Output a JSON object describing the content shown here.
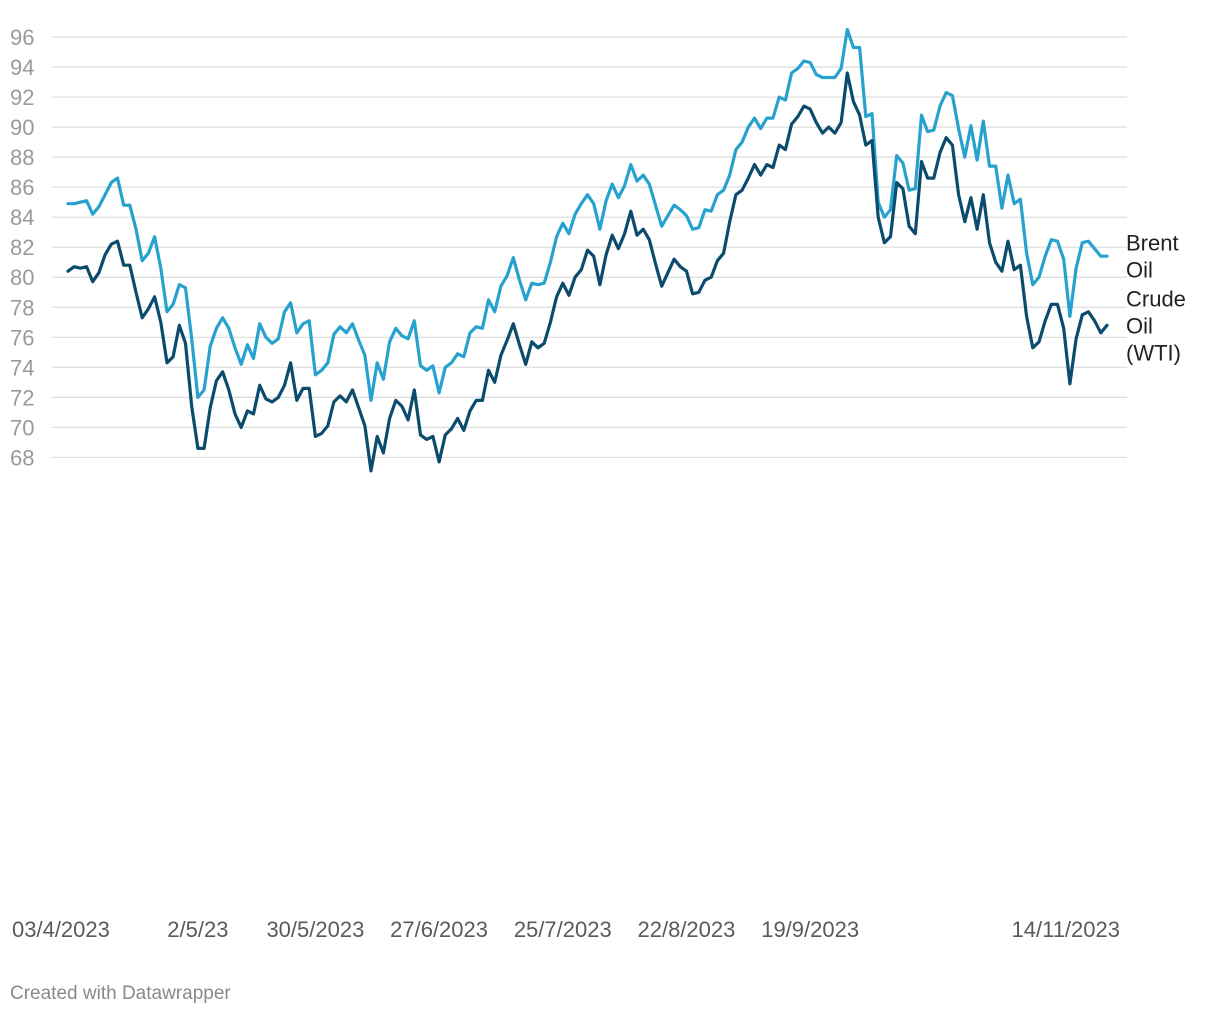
{
  "credit": "Created with Datawrapper",
  "chart_data": {
    "type": "line",
    "title": "",
    "xlabel": "",
    "ylabel": "",
    "ylim": [
      67,
      96.5
    ],
    "y_ticks": [
      68,
      70,
      72,
      74,
      76,
      78,
      80,
      82,
      84,
      86,
      88,
      90,
      92,
      94,
      96
    ],
    "x_ticks": [
      "03/4/2023",
      "2/5/23",
      "30/5/2023",
      "27/6/2023",
      "25/7/2023",
      "22/8/2023",
      "19/9/2023",
      "14/11/2023"
    ],
    "x_tick_index": [
      0,
      21,
      40,
      60,
      80,
      100,
      120,
      169
    ],
    "grid": true,
    "colors": {
      "Brent Oil": "#27a2cf",
      "Crude Oil (WTI)": "#0b4c6e"
    },
    "series": [
      {
        "name": "Brent Oil",
        "label_lines": [
          "Brent",
          "Oil"
        ],
        "values": [
          84.9,
          84.9,
          85.0,
          85.1,
          84.2,
          84.7,
          85.5,
          86.3,
          86.6,
          84.8,
          84.8,
          83.2,
          81.1,
          81.6,
          82.7,
          80.6,
          77.7,
          78.2,
          79.5,
          79.3,
          75.9,
          72.0,
          72.5,
          75.4,
          76.6,
          77.3,
          76.6,
          75.3,
          74.2,
          75.5,
          74.6,
          76.9,
          76.0,
          75.6,
          75.9,
          77.7,
          78.3,
          76.3,
          76.9,
          77.1,
          73.5,
          73.8,
          74.3,
          76.2,
          76.7,
          76.3,
          76.9,
          75.8,
          74.8,
          71.8,
          74.3,
          73.2,
          75.7,
          76.6,
          76.1,
          75.9,
          77.1,
          74.1,
          73.8,
          74.1,
          72.3,
          74.0,
          74.3,
          74.9,
          74.7,
          76.3,
          76.7,
          76.6,
          78.5,
          77.7,
          79.4,
          80.1,
          81.3,
          79.8,
          78.5,
          79.6,
          79.5,
          79.6,
          81.0,
          82.7,
          83.6,
          82.9,
          84.2,
          84.9,
          85.5,
          84.9,
          83.2,
          85.1,
          86.2,
          85.3,
          86.1,
          87.5,
          86.4,
          86.8,
          86.2,
          84.8,
          83.4,
          84.1,
          84.8,
          84.5,
          84.1,
          83.2,
          83.3,
          84.5,
          84.4,
          85.5,
          85.8,
          86.8,
          88.5,
          89.0,
          90.0,
          90.6,
          89.9,
          90.6,
          90.6,
          92.0,
          91.8,
          93.6,
          93.9,
          94.4,
          94.3,
          93.5,
          93.3,
          93.3,
          93.3,
          93.9,
          96.5,
          95.3,
          95.3,
          90.7,
          90.9,
          85.0,
          84.0,
          84.5,
          88.1,
          87.6,
          85.8,
          85.9,
          90.8,
          89.7,
          89.8,
          91.4,
          92.3,
          92.1,
          89.9,
          88.0,
          90.1,
          87.8,
          90.4,
          87.4,
          87.4,
          84.6,
          86.8,
          84.9,
          85.2,
          81.6,
          79.5,
          80.0,
          81.4,
          82.5,
          82.4,
          81.2,
          77.4,
          80.6,
          82.3,
          82.4,
          81.9,
          81.4,
          81.4
        ],
        "end_value": 81.4
      },
      {
        "name": "Crude Oil (WTI)",
        "label_lines": [
          "Crude",
          "Oil",
          "(WTI)"
        ],
        "values": [
          80.4,
          80.7,
          80.6,
          80.7,
          79.7,
          80.3,
          81.5,
          82.2,
          82.4,
          80.8,
          80.8,
          79.0,
          77.3,
          77.9,
          78.7,
          77.0,
          74.3,
          74.7,
          76.8,
          75.6,
          71.4,
          68.6,
          68.6,
          71.3,
          73.1,
          73.7,
          72.5,
          70.9,
          70.0,
          71.1,
          70.9,
          72.8,
          71.9,
          71.7,
          72.0,
          72.8,
          74.3,
          71.8,
          72.6,
          72.6,
          69.4,
          69.6,
          70.1,
          71.7,
          72.1,
          71.7,
          72.5,
          71.3,
          70.1,
          67.1,
          69.4,
          68.3,
          70.6,
          71.8,
          71.4,
          70.5,
          72.5,
          69.5,
          69.2,
          69.4,
          67.7,
          69.5,
          69.9,
          70.6,
          69.8,
          71.1,
          71.8,
          71.8,
          73.8,
          73.0,
          74.8,
          75.8,
          76.9,
          75.5,
          74.2,
          75.7,
          75.3,
          75.6,
          77.0,
          78.7,
          79.6,
          78.8,
          80.0,
          80.5,
          81.8,
          81.4,
          79.5,
          81.5,
          82.8,
          81.9,
          82.9,
          84.4,
          82.8,
          83.2,
          82.5,
          80.9,
          79.4,
          80.3,
          81.2,
          80.7,
          80.4,
          78.9,
          79.0,
          79.8,
          80.0,
          81.1,
          81.6,
          83.7,
          85.5,
          85.8,
          86.6,
          87.5,
          86.8,
          87.5,
          87.3,
          88.8,
          88.5,
          90.2,
          90.7,
          91.4,
          91.2,
          90.3,
          89.6,
          90.0,
          89.6,
          90.3,
          93.6,
          91.7,
          90.8,
          88.8,
          89.1,
          84.0,
          82.3,
          82.7,
          86.3,
          85.9,
          83.4,
          82.9,
          87.7,
          86.6,
          86.6,
          88.3,
          89.3,
          88.8,
          85.5,
          83.7,
          85.3,
          83.2,
          85.5,
          82.3,
          81.0,
          80.4,
          82.4,
          80.5,
          80.8,
          77.4,
          75.3,
          75.7,
          77.1,
          78.2,
          78.2,
          76.6,
          72.9,
          75.9,
          77.5,
          77.7,
          77.1,
          76.3,
          76.8
        ],
        "end_value": 76.8
      }
    ]
  }
}
